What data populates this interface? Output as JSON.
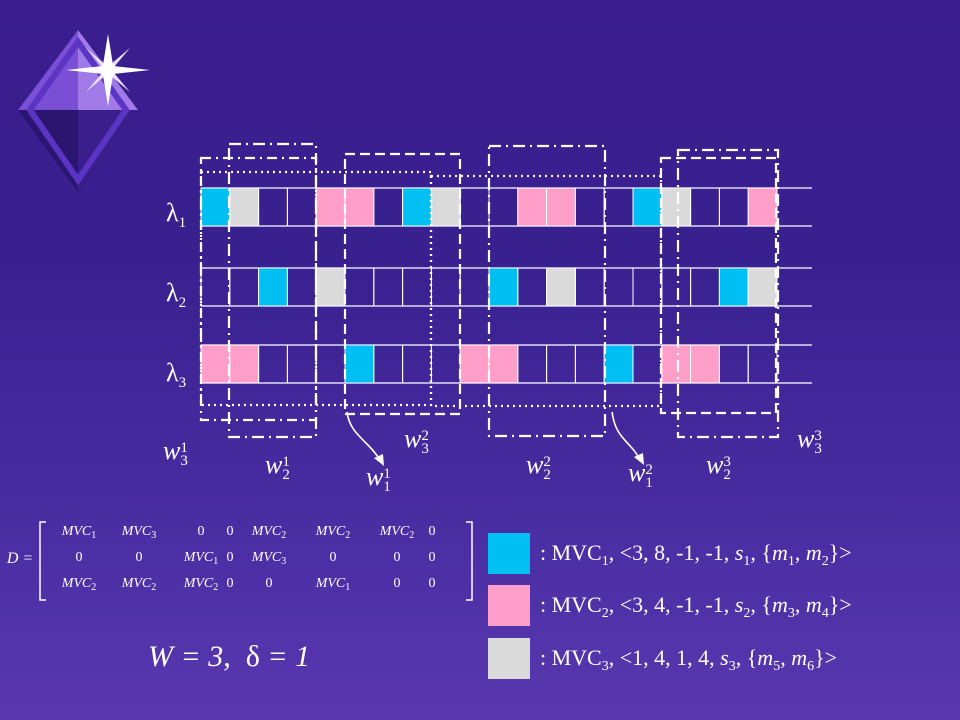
{
  "colors": {
    "cyan": "#00bff2",
    "pink": "#ff9ec9",
    "gray": "#dadada",
    "background": "#3b1d8e"
  },
  "rows": [
    {
      "label": "λ",
      "sub": "1",
      "cells": [
        "cyan",
        "gray",
        "",
        "",
        "pink",
        "pink",
        "",
        "cyan",
        "gray",
        "",
        "",
        "pink",
        "pink",
        "",
        "",
        "cyan",
        "gray",
        "",
        "",
        "pink"
      ]
    },
    {
      "label": "λ",
      "sub": "2",
      "cells": [
        "",
        "",
        "cyan",
        "",
        "gray",
        "",
        "",
        "",
        "",
        "",
        "cyan",
        "",
        "gray",
        "",
        "",
        "",
        "",
        "",
        "cyan",
        "gray"
      ]
    },
    {
      "label": "λ",
      "sub": "3",
      "cells": [
        "pink",
        "pink",
        "",
        "",
        "",
        "cyan",
        "",
        "",
        "",
        "pink",
        "pink",
        "",
        "",
        "",
        "cyan",
        "",
        "pink",
        "pink",
        "",
        ""
      ]
    }
  ],
  "windows": [
    {
      "base": "w",
      "sup": "1",
      "sub": "3"
    },
    {
      "base": "w",
      "sup": "1",
      "sub": "2"
    },
    {
      "base": "w",
      "sup": "1",
      "sub": "1"
    },
    {
      "base": "w",
      "sup": "2",
      "sub": "3"
    },
    {
      "base": "w",
      "sup": "2",
      "sub": "2"
    },
    {
      "base": "w",
      "sup": "2",
      "sub": "1"
    },
    {
      "base": "w",
      "sup": "3",
      "sub": "2"
    },
    {
      "base": "w",
      "sup": "3",
      "sub": "3"
    }
  ],
  "matrix": {
    "name": "D =",
    "rows": [
      [
        [
          "MVC",
          "1"
        ],
        [
          "MVC",
          "3"
        ],
        [
          "0",
          ""
        ],
        [
          "0",
          ""
        ],
        [
          "MVC",
          "2"
        ],
        [
          "MVC",
          "2"
        ],
        [
          "MVC",
          "2"
        ],
        [
          "0",
          ""
        ]
      ],
      [
        [
          "0",
          ""
        ],
        [
          "0",
          ""
        ],
        [
          "MVC",
          "1"
        ],
        [
          "0",
          ""
        ],
        [
          "MVC",
          "3"
        ],
        [
          "0",
          ""
        ],
        [
          "0",
          ""
        ],
        [
          "0",
          ""
        ]
      ],
      [
        [
          "MVC",
          "2"
        ],
        [
          "MVC",
          "2"
        ],
        [
          "MVC",
          "2"
        ],
        [
          "0",
          ""
        ],
        [
          "0",
          ""
        ],
        [
          "MVC",
          "1"
        ],
        [
          "0",
          ""
        ],
        [
          "0",
          ""
        ]
      ]
    ]
  },
  "legend": [
    {
      "color": "cyan",
      "prefix": ": MVC",
      "idx": "1",
      "params": ", <3, 8, -1, -1, ",
      "s": "s",
      "s_idx": "1",
      "m_a": "m",
      "m_a_idx": "1",
      "m_b": "m",
      "m_b_idx": "2"
    },
    {
      "color": "pink",
      "prefix": ": MVC",
      "idx": "2",
      "params": ", <3, 4, -1, -1, ",
      "s": "s",
      "s_idx": "2",
      "m_a": "m",
      "m_a_idx": "3",
      "m_b": "m",
      "m_b_idx": "4"
    },
    {
      "color": "gray",
      "prefix": ": MVC",
      "idx": "3",
      "params": ", <1, 4, 1, 4, ",
      "s": "s",
      "s_idx": "3",
      "m_a": "m",
      "m_a_idx": "5",
      "m_b": "m",
      "m_b_idx": "6"
    }
  ],
  "params_text": {
    "w_part": "W = 3,",
    "delta": "δ",
    "delta_part": " = 1"
  }
}
